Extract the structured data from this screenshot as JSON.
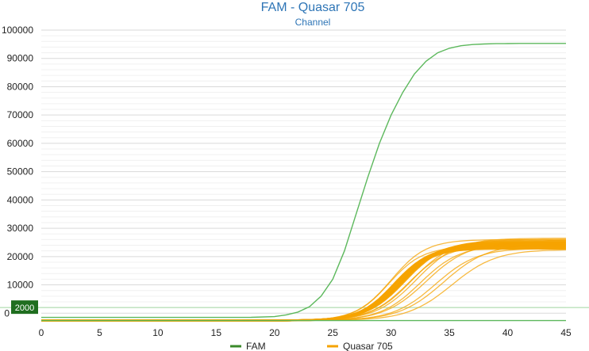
{
  "chart_data": {
    "type": "line",
    "title": "FAM - Quasar 705",
    "subtitle": "Channel",
    "xlabel": "",
    "ylabel": "",
    "xlim": [
      0,
      45
    ],
    "ylim": [
      -3000,
      100000
    ],
    "x_ticks": [
      "0",
      "5",
      "10",
      "15",
      "20",
      "25",
      "30",
      "35",
      "40",
      "45"
    ],
    "y_ticks": [
      "0",
      "10000",
      "20000",
      "30000",
      "40000",
      "50000",
      "60000",
      "70000",
      "80000",
      "90000",
      "100000"
    ],
    "grid": true,
    "legend": "bottom",
    "threshold": {
      "value": 2000,
      "label": "2000"
    },
    "series": [
      {
        "name": "FAM",
        "color": "#5cb85c",
        "legend_color": "#3a8a2a",
        "curves": [
          {
            "x": [
              0,
              5,
              10,
              15,
              18,
              20,
              21,
              22,
              23,
              24,
              25,
              26,
              27,
              28,
              29,
              30,
              31,
              32,
              33,
              34,
              35,
              36,
              37,
              38,
              39,
              40,
              41,
              42,
              43,
              44,
              45
            ],
            "y": [
              -1500,
              -1500,
              -1500,
              -1500,
              -1450,
              -1200,
              -600,
              400,
              2300,
              6000,
              12000,
              22000,
              35000,
              48000,
              60000,
              70000,
              78000,
              84500,
              89000,
              92000,
              93600,
              94500,
              94900,
              95100,
              95200,
              95250,
              95300,
              95300,
              95300,
              95300,
              95300
            ]
          },
          {
            "x": [
              0,
              10,
              20,
              30,
              40,
              45
            ],
            "y": [
              -2600,
              -2600,
              -2600,
              -2600,
              -2600,
              -2600
            ]
          }
        ]
      },
      {
        "name": "Quasar 705",
        "color": "#f5a300",
        "legend_color": "#f5a300",
        "curves_sigmoid": [
          {
            "plateau": 24000,
            "midpoint": 30.5,
            "slope": 1.55
          },
          {
            "plateau": 24500,
            "midpoint": 30.8,
            "slope": 1.6
          },
          {
            "plateau": 23500,
            "midpoint": 30.3,
            "slope": 1.5
          },
          {
            "plateau": 25000,
            "midpoint": 31.0,
            "slope": 1.6
          },
          {
            "plateau": 23000,
            "midpoint": 30.6,
            "slope": 1.5
          },
          {
            "plateau": 24800,
            "midpoint": 30.9,
            "slope": 1.55
          },
          {
            "plateau": 23800,
            "midpoint": 30.4,
            "slope": 1.5
          },
          {
            "plateau": 24200,
            "midpoint": 30.7,
            "slope": 1.55
          },
          {
            "plateau": 25500,
            "midpoint": 31.2,
            "slope": 1.65
          },
          {
            "plateau": 22800,
            "midpoint": 30.2,
            "slope": 1.45
          },
          {
            "plateau": 26000,
            "midpoint": 31.8,
            "slope": 1.7
          },
          {
            "plateau": 26500,
            "midpoint": 32.2,
            "slope": 1.75
          },
          {
            "plateau": 24000,
            "midpoint": 32.5,
            "slope": 1.7
          },
          {
            "plateau": 25000,
            "midpoint": 33.0,
            "slope": 1.8
          },
          {
            "plateau": 23000,
            "midpoint": 33.8,
            "slope": 1.8
          },
          {
            "plateau": 24500,
            "midpoint": 34.5,
            "slope": 1.9
          },
          {
            "plateau": 22500,
            "midpoint": 35.2,
            "slope": 1.9
          },
          {
            "plateau": 26000,
            "midpoint": 30.0,
            "slope": 1.5
          },
          {
            "plateau": 24000,
            "midpoint": 31.5,
            "slope": 1.65
          },
          {
            "plateau": 23500,
            "midpoint": 29.8,
            "slope": 1.45
          }
        ],
        "baseline": -2600
      }
    ]
  }
}
